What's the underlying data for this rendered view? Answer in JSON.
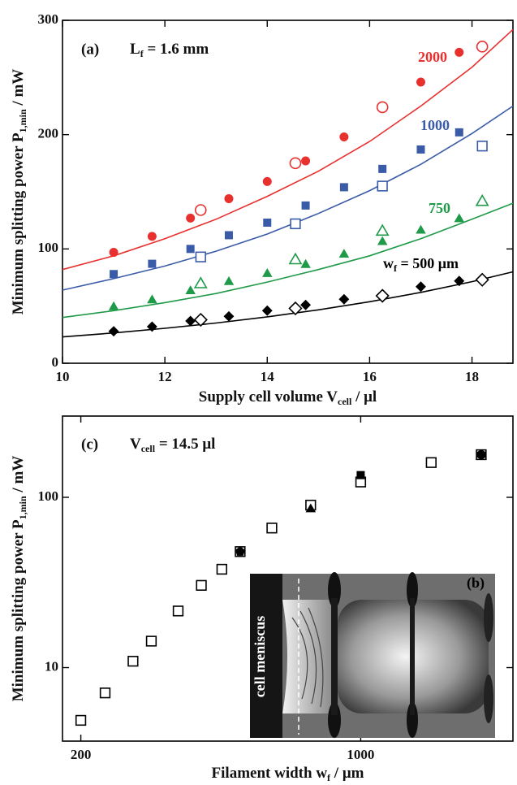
{
  "chart_data": [
    {
      "type": "scatter",
      "panel_label": "(a)",
      "annotation": [
        "L",
        "f",
        " = 1.6 mm"
      ],
      "xlabel": [
        "Supply cell volume V",
        "cell",
        " / μl"
      ],
      "ylabel": [
        "Minimum splitting power P",
        "1,min",
        " / mW"
      ],
      "xlim": [
        10,
        18.8
      ],
      "ylim": [
        0,
        300
      ],
      "xticks": [
        10,
        12,
        14,
        16,
        18
      ],
      "yticks": [
        0,
        100,
        200,
        300
      ],
      "curve_labels": [
        {
          "text": [
            "2000"
          ],
          "color": "#e8312f"
        },
        {
          "text": [
            "1000"
          ],
          "color": "#3a5ba8"
        },
        {
          "text": [
            "750"
          ],
          "color": "#1f9a48"
        },
        {
          "text": [
            "w",
            "f",
            " = 500 μm"
          ],
          "color": "#000000"
        }
      ],
      "series": [
        {
          "style": "line",
          "color": "#e8312f",
          "x": [
            10,
            11,
            12,
            13,
            14,
            15,
            16,
            17,
            18,
            18.8
          ],
          "values": [
            82,
            94,
            109,
            126,
            146,
            168,
            194,
            225,
            259,
            292
          ]
        },
        {
          "style": "marker",
          "marker": "circle",
          "filled": true,
          "color": "#e8312f",
          "x": [
            11,
            11.75,
            12.5,
            13.25,
            14,
            14.75,
            15.5,
            17,
            17.75
          ],
          "values": [
            97,
            111,
            127,
            144,
            159,
            177,
            198,
            246,
            272
          ]
        },
        {
          "style": "marker",
          "marker": "circle",
          "filled": false,
          "color": "#e8312f",
          "x": [
            12.7,
            14.55,
            16.25,
            18.2
          ],
          "values": [
            134,
            175,
            224,
            277
          ]
        },
        {
          "style": "line",
          "color": "#3a5ba8",
          "x": [
            10,
            11,
            12,
            13,
            14,
            15,
            16,
            17,
            18,
            18.8
          ],
          "values": [
            64,
            74,
            85,
            98,
            113,
            131,
            151,
            174,
            201,
            225
          ]
        },
        {
          "style": "marker",
          "marker": "square",
          "filled": true,
          "color": "#3a5ba8",
          "x": [
            11,
            11.75,
            12.5,
            13.25,
            14,
            14.75,
            15.5,
            16.25,
            17,
            17.75
          ],
          "values": [
            78,
            87,
            100,
            112,
            123,
            138,
            154,
            170,
            187,
            202
          ]
        },
        {
          "style": "marker",
          "marker": "square",
          "filled": false,
          "color": "#3a5ba8",
          "x": [
            12.7,
            14.55,
            16.25,
            18.2
          ],
          "values": [
            93,
            122,
            155,
            190
          ]
        },
        {
          "style": "line",
          "color": "#1f9a48",
          "x": [
            10,
            11,
            12,
            13,
            14,
            15,
            16,
            17,
            18,
            18.8
          ],
          "values": [
            40,
            46,
            53,
            61,
            71,
            82,
            94,
            109,
            126,
            140
          ]
        },
        {
          "style": "marker",
          "marker": "triangle",
          "filled": true,
          "color": "#1f9a48",
          "x": [
            11,
            11.75,
            12.5,
            13.25,
            14,
            14.75,
            15.5,
            16.25,
            17,
            17.75
          ],
          "values": [
            49,
            55,
            63,
            71,
            78,
            86,
            95,
            106,
            116,
            126
          ]
        },
        {
          "style": "marker",
          "marker": "triangle",
          "filled": false,
          "color": "#1f9a48",
          "x": [
            12.7,
            14.55,
            16.25,
            18.2
          ],
          "values": [
            69,
            90,
            115,
            141
          ]
        },
        {
          "style": "line",
          "color": "#000000",
          "x": [
            10,
            11,
            12,
            13,
            14,
            15,
            16,
            17,
            18,
            18.8
          ],
          "values": [
            23,
            26.5,
            30.6,
            35.2,
            40.6,
            46.7,
            53.8,
            62,
            71.4,
            80
          ]
        },
        {
          "style": "marker",
          "marker": "diamond",
          "filled": true,
          "color": "#000000",
          "x": [
            11,
            11.75,
            12.5,
            13.25,
            14,
            14.75,
            15.5,
            17,
            17.75
          ],
          "values": [
            28,
            32,
            37,
            41,
            46,
            51,
            56,
            67,
            72
          ]
        },
        {
          "style": "marker",
          "marker": "diamond",
          "filled": false,
          "color": "#000000",
          "x": [
            12.7,
            14.55,
            16.25,
            18.2
          ],
          "values": [
            38,
            48,
            59,
            73
          ]
        }
      ]
    },
    {
      "type": "scatter",
      "panel_label": "(c)",
      "annotation": [
        "V",
        "cell",
        " = 14.5 μl"
      ],
      "xlabel": [
        "Filament width w",
        "f",
        " / μm"
      ],
      "ylabel": [
        "Minimum splitting power P",
        "1,min",
        " / mW"
      ],
      "xscale": "log",
      "yscale": "log",
      "xlim": [
        180,
        2400
      ],
      "ylim": [
        3.7,
        300
      ],
      "xticks": [
        200,
        1000
      ],
      "yticks": [
        10,
        100
      ],
      "inset_label": "(b)",
      "inset_text": "cell meniscus",
      "series": [
        {
          "style": "marker",
          "marker": "square",
          "filled": false,
          "color": "#000000",
          "x": [
            200,
            230,
            270,
            300,
            350,
            400,
            450,
            500,
            600,
            750,
            1000,
            1500,
            2000
          ],
          "values": [
            4.9,
            7.1,
            10.9,
            14.3,
            21.5,
            30.4,
            37.8,
            48,
            66,
            90,
            123,
            160,
            178
          ]
        },
        {
          "style": "marker",
          "marker": "pentagon",
          "filled": true,
          "color": "#000000",
          "x": [
            500
          ],
          "values": [
            48
          ]
        },
        {
          "style": "marker",
          "marker": "triangle",
          "filled": true,
          "color": "#000000",
          "x": [
            750
          ],
          "values": [
            85
          ]
        },
        {
          "style": "marker",
          "marker": "square",
          "filled": true,
          "color": "#000000",
          "x": [
            1000
          ],
          "values": [
            135
          ]
        },
        {
          "style": "marker",
          "marker": "hexagon",
          "filled": true,
          "color": "#000000",
          "x": [
            2000
          ],
          "values": [
            178
          ]
        }
      ]
    }
  ]
}
